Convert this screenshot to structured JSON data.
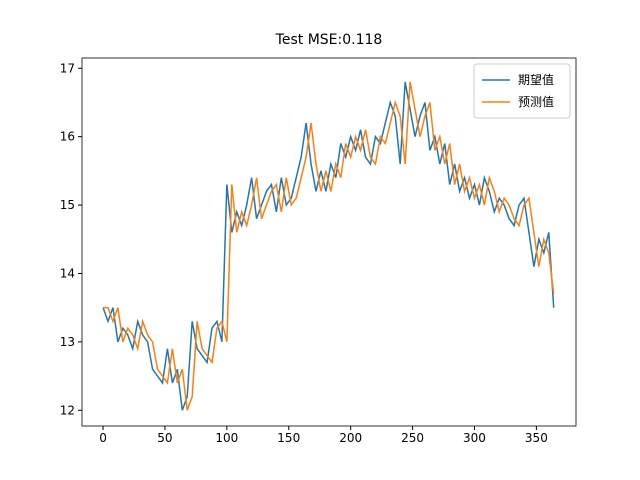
{
  "chart_data": {
    "type": "line",
    "title": "Test MSE:0.118",
    "x": [
      0,
      4,
      8,
      12,
      16,
      20,
      24,
      28,
      32,
      36,
      40,
      44,
      48,
      52,
      56,
      60,
      64,
      68,
      72,
      76,
      80,
      84,
      88,
      92,
      96,
      100,
      104,
      108,
      112,
      116,
      120,
      124,
      128,
      132,
      136,
      140,
      144,
      148,
      152,
      156,
      160,
      164,
      168,
      172,
      176,
      180,
      184,
      188,
      192,
      196,
      200,
      204,
      208,
      212,
      216,
      220,
      224,
      228,
      232,
      236,
      240,
      244,
      248,
      252,
      256,
      260,
      264,
      268,
      272,
      276,
      280,
      284,
      288,
      292,
      296,
      300,
      304,
      308,
      312,
      316,
      320,
      324,
      328,
      332,
      336,
      340,
      344,
      348,
      352,
      356,
      360,
      364
    ],
    "series": [
      {
        "name": "期望值",
        "color": "#1f77b4",
        "values": [
          13.5,
          13.3,
          13.5,
          13.0,
          13.2,
          13.1,
          12.9,
          13.3,
          13.1,
          13.0,
          12.6,
          12.5,
          12.4,
          12.9,
          12.4,
          12.6,
          12.0,
          12.2,
          13.3,
          12.9,
          12.8,
          12.7,
          13.2,
          13.3,
          13.0,
          15.3,
          14.6,
          14.9,
          14.7,
          15.0,
          15.4,
          14.8,
          15.0,
          15.2,
          15.3,
          14.9,
          15.4,
          15.0,
          15.1,
          15.4,
          15.7,
          16.2,
          15.6,
          15.2,
          15.5,
          15.2,
          15.6,
          15.4,
          15.9,
          15.7,
          16.0,
          15.8,
          16.1,
          15.7,
          15.6,
          16.0,
          15.9,
          16.2,
          16.5,
          16.3,
          15.6,
          16.8,
          16.4,
          16.0,
          16.3,
          16.5,
          15.8,
          16.0,
          15.6,
          15.9,
          15.3,
          15.6,
          15.2,
          15.4,
          15.1,
          15.3,
          15.0,
          15.4,
          15.2,
          14.9,
          15.1,
          15.0,
          14.8,
          14.7,
          15.0,
          15.1,
          14.6,
          14.1,
          14.5,
          14.3,
          14.6,
          13.5
        ]
      },
      {
        "name": "预测值",
        "color": "#ff7f0e",
        "values": [
          13.5,
          13.5,
          13.3,
          13.5,
          13.0,
          13.2,
          13.1,
          12.9,
          13.3,
          13.1,
          13.0,
          12.6,
          12.5,
          12.4,
          12.9,
          12.4,
          12.6,
          12.0,
          12.2,
          13.3,
          12.9,
          12.8,
          12.7,
          13.2,
          13.3,
          13.0,
          15.3,
          14.6,
          14.9,
          14.7,
          15.0,
          15.4,
          14.8,
          15.0,
          15.2,
          15.3,
          14.9,
          15.4,
          15.0,
          15.1,
          15.4,
          15.7,
          16.2,
          15.6,
          15.2,
          15.5,
          15.2,
          15.6,
          15.4,
          15.9,
          15.7,
          16.0,
          15.8,
          16.1,
          15.7,
          15.6,
          16.0,
          15.9,
          16.2,
          16.5,
          16.3,
          15.6,
          16.8,
          16.4,
          16.0,
          16.3,
          16.5,
          15.8,
          16.0,
          15.6,
          15.9,
          15.3,
          15.6,
          15.2,
          15.4,
          15.1,
          15.3,
          15.0,
          15.4,
          15.2,
          14.9,
          15.1,
          15.0,
          14.8,
          14.7,
          15.0,
          15.1,
          14.6,
          14.1,
          14.5,
          14.3,
          13.7
        ]
      }
    ],
    "xlim": [
      -17,
      382
    ],
    "ylim": [
      11.77,
      17.15
    ],
    "xticks": [
      0,
      50,
      100,
      150,
      200,
      250,
      300,
      350
    ],
    "yticks": [
      12,
      13,
      14,
      15,
      16,
      17
    ],
    "legend": "upper right"
  }
}
